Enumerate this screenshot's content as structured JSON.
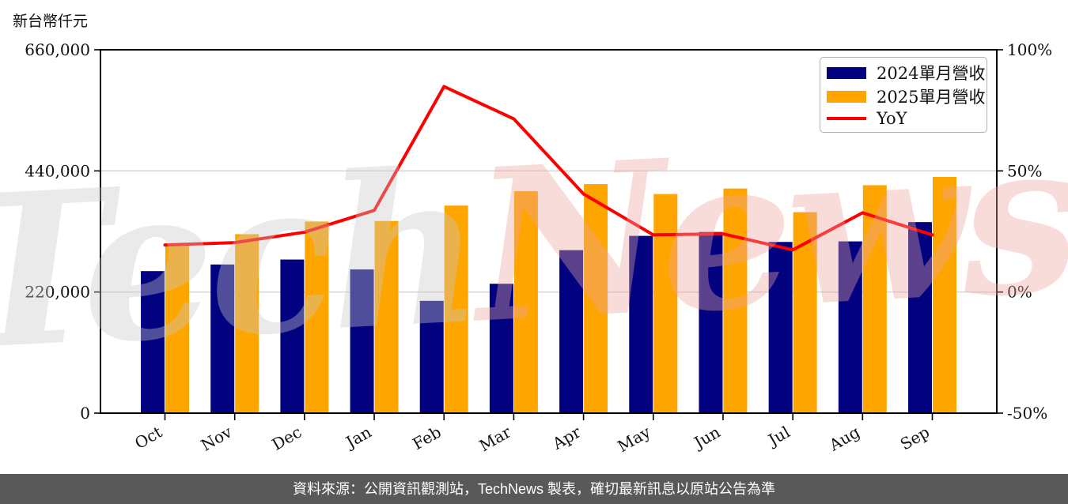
{
  "axis_unit_label": "新台幣仟元",
  "watermark": {
    "part1": "Tech",
    "part2": "News",
    "part1_color": "#c9c9c9",
    "part2_color": "#eda49e"
  },
  "legend": {
    "items": [
      {
        "label": "2024單月營收",
        "type": "swatch",
        "color": "#020280"
      },
      {
        "label": "2025單月營收",
        "type": "swatch",
        "color": "#FFA500"
      },
      {
        "label": "YoY",
        "type": "line",
        "color": "#FF0000"
      }
    ]
  },
  "footer": {
    "text": "資料來源：公開資訊觀測站，TechNews 製表，確切最新訊息以原站公告為準"
  },
  "chart_data": {
    "type": "bar",
    "title": "",
    "xlabel": "",
    "ylabel": "新台幣仟元",
    "categories": [
      "Oct",
      "Nov",
      "Dec",
      "Jan",
      "Feb",
      "Mar",
      "Apr",
      "May",
      "Jun",
      "Jul",
      "Aug",
      "Sep"
    ],
    "series": [
      {
        "name": "2024單月營收",
        "type": "bar",
        "axis": "left",
        "color": "#020280",
        "values": [
          258000,
          270000,
          279000,
          261000,
          204000,
          235000,
          296000,
          322000,
          329000,
          311000,
          312000,
          347000
        ]
      },
      {
        "name": "2025單月營收",
        "type": "bar",
        "axis": "left",
        "color": "#FFA500",
        "values": [
          308000,
          325000,
          348000,
          349000,
          377000,
          403000,
          416000,
          398000,
          408000,
          365000,
          414000,
          429000
        ]
      },
      {
        "name": "YoY",
        "type": "line",
        "axis": "right",
        "color": "#FF0000",
        "values": [
          19.4,
          20.4,
          24.7,
          33.7,
          84.8,
          71.5,
          40.5,
          23.6,
          24.0,
          17.4,
          32.7,
          23.6
        ]
      }
    ],
    "left_axis": {
      "ticks": [
        0,
        220000,
        440000,
        660000
      ],
      "tick_labels": [
        "0",
        "220,000",
        "440,000",
        "660,000"
      ],
      "min": 0,
      "max": 660000
    },
    "right_axis": {
      "ticks": [
        -50,
        0,
        50,
        100
      ],
      "tick_labels": [
        "-50%",
        "0%",
        "50%",
        "100%"
      ],
      "min": -50,
      "max": 100
    },
    "grid": "horizontal gridlines at interior left-axis ticks",
    "legend_position": "upper right",
    "colors": {
      "grid": "#d3d3d3",
      "spine": "#000000",
      "tick_label": "#111111"
    }
  }
}
